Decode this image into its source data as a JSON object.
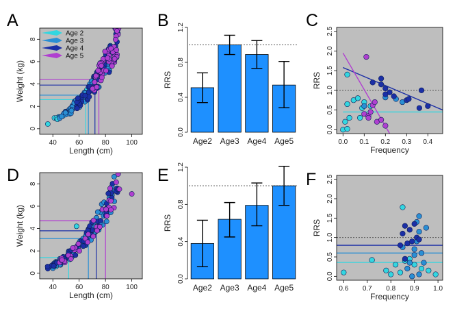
{
  "chart_data": [
    {
      "panel": "A",
      "type": "scatter",
      "xlabel": "Length (cm)",
      "ylabel": "Weight (kg)",
      "xlim": [
        30,
        108
      ],
      "ylim": [
        -0.5,
        9
      ],
      "xticks": [
        40,
        60,
        80,
        100
      ],
      "yticks": [
        0,
        2,
        4,
        6,
        8
      ],
      "background": "#bebebe",
      "legend": {
        "placement": "top-left",
        "entries": [
          {
            "label": "Age 2",
            "color": "#33d6e0"
          },
          {
            "label": "Age 3",
            "color": "#2a8fd4"
          },
          {
            "label": "Age 4",
            "color": "#1b2fa6"
          },
          {
            "label": "Age 5",
            "color": "#b03fd0"
          }
        ]
      },
      "reference_lines": [
        {
          "age": "Age 2",
          "color": "#33d6e0",
          "x": 65,
          "y": 2.6
        },
        {
          "age": "Age 3",
          "color": "#2a8fd4",
          "x": 67,
          "y": 3.0
        },
        {
          "age": "Age 4",
          "color": "#1b2fa6",
          "x": 72,
          "y": 3.9
        },
        {
          "age": "Age 5",
          "color": "#b03fd0",
          "x": 75,
          "y": 4.4
        }
      ],
      "curve": {
        "a": 1.12e-05,
        "b": 3.0
      },
      "clusters": [
        {
          "age": "Age 2",
          "color": "#33d6e0",
          "xmin": 36,
          "xmax": 66,
          "n": 22
        },
        {
          "age": "Age 3",
          "color": "#2a8fd4",
          "xmin": 45,
          "xmax": 84,
          "n": 80
        },
        {
          "age": "Age 4",
          "color": "#1b2fa6",
          "xmin": 58,
          "xmax": 90,
          "n": 60
        },
        {
          "age": "Age 5",
          "color": "#b03fd0",
          "xmin": 70,
          "xmax": 90,
          "n": 55
        }
      ]
    },
    {
      "panel": "B",
      "type": "bar",
      "ylabel": "RRS",
      "categories": [
        "Age2",
        "Age3",
        "Age4",
        "Age5"
      ],
      "values": [
        0.51,
        1.0,
        0.89,
        0.54
      ],
      "error_low": [
        0.34,
        0.89,
        0.73,
        0.28
      ],
      "error_high": [
        0.68,
        1.11,
        1.05,
        0.81
      ],
      "ylim": [
        0,
        1.2
      ],
      "yticks": [
        0.0,
        0.4,
        0.8,
        1.2
      ],
      "yticklabels": [
        "0.0",
        "0.4",
        "0.8",
        "1.2"
      ],
      "reference_y": 1.0,
      "bar_color": "#1e90ff"
    },
    {
      "panel": "C",
      "type": "scatter",
      "xlabel": "Frequency",
      "ylabel": "RRS",
      "xlim": [
        -0.03,
        0.47
      ],
      "ylim": [
        -0.1,
        2.6
      ],
      "xticks": [
        0.0,
        0.1,
        0.2,
        0.3,
        0.4
      ],
      "xticklabels": [
        "0.0",
        "0.1",
        "0.2",
        "0.3",
        "0.4"
      ],
      "yticks": [
        0.0,
        0.5,
        1.0,
        1.5,
        2.0,
        2.5
      ],
      "yticklabels": [
        "0.0",
        "0.5",
        "1.0",
        "1.5",
        "2.0",
        "2.5"
      ],
      "reference_y": 1.0,
      "background": "#bebebe",
      "series": [
        {
          "name": "Age 2",
          "color": "#33d6e0",
          "points": [
            [
              0.0,
              0.0
            ],
            [
              0.01,
              0.2
            ],
            [
              0.02,
              0.02
            ],
            [
              0.03,
              0.3
            ],
            [
              0.02,
              0.65
            ],
            [
              0.05,
              0.75
            ],
            [
              0.07,
              0.8
            ],
            [
              0.09,
              0.55
            ],
            [
              0.1,
              0.7
            ],
            [
              0.13,
              0.6
            ],
            [
              0.02,
              1.4
            ],
            [
              0.08,
              0.3
            ]
          ],
          "fit": [
            [
              0.0,
              0.45
            ],
            [
              0.47,
              0.45
            ]
          ]
        },
        {
          "name": "Age 3",
          "color": "#2a8fd4",
          "points": [
            [
              0.2,
              0.82
            ],
            [
              0.25,
              0.78
            ],
            [
              0.28,
              0.7
            ],
            [
              0.1,
              0.6
            ]
          ],
          "fit": null
        },
        {
          "name": "Age 4",
          "color": "#1b2fa6",
          "points": [
            [
              0.14,
              1.2
            ],
            [
              0.18,
              1.15
            ],
            [
              0.2,
              1.05
            ],
            [
              0.22,
              0.95
            ],
            [
              0.24,
              0.85
            ],
            [
              0.3,
              0.75
            ],
            [
              0.31,
              0.78
            ],
            [
              0.36,
              0.55
            ],
            [
              0.4,
              0.6
            ],
            [
              0.37,
              1.0
            ],
            [
              0.18,
              1.3
            ],
            [
              0.2,
              0.9
            ]
          ],
          "fit": [
            [
              0.0,
              1.58
            ],
            [
              0.47,
              0.5
            ]
          ]
        },
        {
          "name": "Age 5",
          "color": "#b03fd0",
          "points": [
            [
              0.11,
              1.85
            ],
            [
              0.1,
              0.4
            ],
            [
              0.12,
              0.35
            ],
            [
              0.14,
              0.62
            ],
            [
              0.15,
              0.7
            ],
            [
              0.12,
              0.3
            ],
            [
              0.16,
              0.2
            ],
            [
              0.18,
              0.25
            ],
            [
              0.2,
              0.1
            ],
            [
              0.13,
              0.45
            ]
          ],
          "fit": [
            [
              0.0,
              1.95
            ],
            [
              0.22,
              -0.1
            ]
          ]
        }
      ]
    },
    {
      "panel": "D",
      "type": "scatter",
      "xlabel": "Length (cm)",
      "ylabel": "Weight (kg)",
      "xlim": [
        30,
        108
      ],
      "ylim": [
        -0.5,
        9
      ],
      "xticks": [
        40,
        60,
        80,
        100
      ],
      "yticks": [
        0,
        2,
        4,
        6,
        8
      ],
      "background": "#bebebe",
      "reference_lines": [
        {
          "age": "Age 2",
          "color": "#33d6e0",
          "x": 52,
          "y": 1.4
        },
        {
          "age": "Age 3",
          "color": "#2a8fd4",
          "x": 67,
          "y": 3.1
        },
        {
          "age": "Age 4",
          "color": "#1b2fa6",
          "x": 73,
          "y": 3.8
        },
        {
          "age": "Age 5",
          "color": "#b03fd0",
          "x": 80,
          "y": 4.7
        }
      ],
      "curve": {
        "a": 1.12e-05,
        "b": 3.0
      },
      "clusters": [
        {
          "age": "Age 2",
          "color": "#33d6e0",
          "xmin": 40,
          "xmax": 70,
          "n": 20
        },
        {
          "age": "Age 3",
          "color": "#2a8fd4",
          "xmin": 40,
          "xmax": 88,
          "n": 90
        },
        {
          "age": "Age 4",
          "color": "#1b2fa6",
          "xmin": 36,
          "xmax": 93,
          "n": 55
        },
        {
          "age": "Age 5",
          "color": "#b03fd0",
          "xmin": 45,
          "xmax": 92,
          "n": 35
        }
      ],
      "extra_points": [
        {
          "color": "#b03fd0",
          "x": 100,
          "y": 7.1
        },
        {
          "color": "#33d6e0",
          "x": 58,
          "y": 4.2
        },
        {
          "color": "#1b2fa6",
          "x": 36,
          "y": 0.6
        }
      ]
    },
    {
      "panel": "E",
      "type": "bar",
      "ylabel": "RRS",
      "categories": [
        "Age2",
        "Age3",
        "Age4",
        "Age5"
      ],
      "values": [
        0.38,
        0.64,
        0.79,
        1.0
      ],
      "error_low": [
        0.13,
        0.45,
        0.57,
        0.79
      ],
      "error_high": [
        0.63,
        0.82,
        1.03,
        1.21
      ],
      "ylim": [
        0,
        1.2
      ],
      "yticks": [
        0.0,
        0.4,
        0.8,
        1.2
      ],
      "yticklabels": [
        "0.0",
        "0.4",
        "0.8",
        "1.2"
      ],
      "reference_y": 1.0,
      "bar_color": "#1e90ff"
    },
    {
      "panel": "F",
      "type": "scatter",
      "xlabel": "Frequency",
      "ylabel": "RRS",
      "xlim": [
        0.57,
        1.02
      ],
      "ylim": [
        -0.1,
        2.6
      ],
      "xticks": [
        0.6,
        0.7,
        0.8,
        0.9,
        1.0
      ],
      "xticklabels": [
        "0.6",
        "0.7",
        "0.8",
        "0.9",
        "1.0"
      ],
      "yticks": [
        0.0,
        0.5,
        1.0,
        1.5,
        2.0,
        2.5
      ],
      "yticklabels": [
        "0.0",
        "0.5",
        "1.0",
        "1.5",
        "2.0",
        "2.5"
      ],
      "reference_y": 1.0,
      "background": "#bebebe",
      "series": [
        {
          "name": "Age 2",
          "color": "#33d6e0",
          "points": [
            [
              0.6,
              0.1
            ],
            [
              0.72,
              0.42
            ],
            [
              0.78,
              0.15
            ],
            [
              0.8,
              0.05
            ],
            [
              0.82,
              0.3
            ],
            [
              0.85,
              1.78
            ],
            [
              0.86,
              0.4
            ],
            [
              0.88,
              0.45
            ],
            [
              0.9,
              0.3
            ],
            [
              0.93,
              0.2
            ],
            [
              0.96,
              0.15
            ],
            [
              0.99,
              0.05
            ],
            [
              0.84,
              0.1
            ]
          ],
          "fit": [
            [
              0.57,
              0.36
            ],
            [
              1.02,
              0.36
            ]
          ]
        },
        {
          "name": "Age 3",
          "color": "#2a8fd4",
          "points": [
            [
              0.88,
              0.35
            ],
            [
              0.9,
              0.55
            ],
            [
              0.9,
              0.7
            ],
            [
              0.91,
              0.9
            ],
            [
              0.92,
              1.15
            ],
            [
              0.92,
              1.55
            ],
            [
              0.93,
              0.6
            ],
            [
              0.94,
              0.35
            ],
            [
              0.95,
              1.25
            ],
            [
              0.92,
              0.05
            ],
            [
              0.87,
              0.2
            ],
            [
              0.85,
              0.75
            ],
            [
              0.91,
              1.4
            ],
            [
              0.89,
              0.0
            ]
          ],
          "fit": [
            [
              0.57,
              0.6
            ],
            [
              1.02,
              0.6
            ]
          ]
        },
        {
          "name": "Age 4",
          "color": "#1b2fa6",
          "points": [
            [
              0.85,
              1.1
            ],
            [
              0.86,
              1.3
            ],
            [
              0.87,
              0.85
            ],
            [
              0.88,
              1.2
            ],
            [
              0.89,
              0.9
            ],
            [
              0.9,
              1.35
            ],
            [
              0.91,
              1.0
            ],
            [
              0.92,
              0.95
            ],
            [
              0.86,
              0.45
            ],
            [
              0.84,
              0.8
            ]
          ],
          "fit": [
            [
              0.57,
              0.8
            ],
            [
              1.02,
              0.8
            ]
          ]
        }
      ]
    }
  ]
}
